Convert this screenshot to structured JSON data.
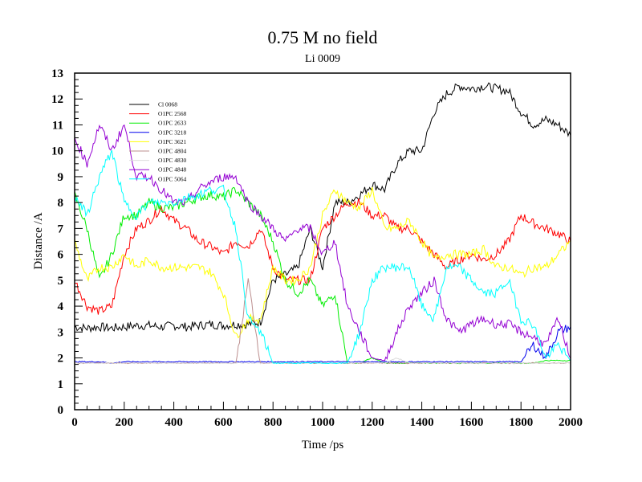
{
  "chart_data": {
    "type": "line",
    "title": "0.75 M no field",
    "subtitle": "Li 0009",
    "xlabel": "Time /ps",
    "ylabel": "Distance /A",
    "xlim": [
      0,
      2000
    ],
    "ylim": [
      0,
      13
    ],
    "xticks": [
      0,
      200,
      400,
      600,
      800,
      1000,
      1200,
      1400,
      1600,
      1800,
      2000
    ],
    "yticks": [
      0,
      1,
      2,
      3,
      4,
      5,
      6,
      7,
      8,
      9,
      10,
      11,
      12,
      13
    ],
    "grid": false,
    "legend_position": "top-left",
    "x": [
      0,
      50,
      100,
      150,
      200,
      250,
      300,
      350,
      400,
      450,
      500,
      550,
      600,
      650,
      700,
      750,
      800,
      850,
      900,
      950,
      1000,
      1050,
      1100,
      1150,
      1200,
      1250,
      1300,
      1350,
      1400,
      1450,
      1500,
      1550,
      1600,
      1650,
      1700,
      1750,
      1800,
      1850,
      1900,
      1950,
      2000
    ],
    "series": [
      {
        "name": "Cl 0068",
        "color": "#000000",
        "values": [
          3.2,
          3.15,
          3.2,
          3.15,
          3.2,
          3.25,
          3.25,
          3.2,
          3.25,
          3.2,
          3.25,
          3.3,
          3.25,
          3.3,
          3.3,
          3.4,
          5.0,
          5.2,
          5.5,
          7.0,
          5.5,
          8.0,
          8.0,
          8.3,
          8.7,
          8.5,
          9.5,
          10.0,
          10.0,
          11.5,
          12.2,
          12.5,
          12.4,
          12.5,
          12.4,
          12.3,
          11.5,
          11.0,
          11.2,
          11.0,
          10.6
        ]
      },
      {
        "name": "O1PC 2568",
        "color": "#ff0000",
        "values": [
          5.0,
          4.0,
          3.8,
          4.0,
          6.0,
          7.0,
          7.3,
          7.8,
          7.3,
          7.0,
          6.5,
          6.3,
          6.0,
          6.5,
          6.3,
          7.0,
          5.5,
          5.0,
          5.0,
          5.0,
          7.0,
          7.5,
          8.0,
          8.0,
          7.5,
          7.5,
          7.0,
          7.0,
          6.5,
          6.0,
          5.5,
          5.8,
          6.0,
          5.8,
          6.0,
          6.5,
          7.5,
          7.2,
          7.0,
          6.8,
          6.5
        ]
      },
      {
        "name": "O1PC 2633",
        "color": "#00ee00",
        "values": [
          8.3,
          7.0,
          5.0,
          6.0,
          7.5,
          7.5,
          8.0,
          7.8,
          7.8,
          8.0,
          8.2,
          8.3,
          8.2,
          8.5,
          8.0,
          7.5,
          6.5,
          5.0,
          4.5,
          5.0,
          4.0,
          4.5,
          1.8,
          1.8,
          2.0,
          1.8,
          1.8,
          1.8,
          1.8,
          1.8,
          1.8,
          1.8,
          1.8,
          1.8,
          1.8,
          1.8,
          1.8,
          1.8,
          1.9,
          1.9,
          1.9
        ]
      },
      {
        "name": "O1PC 3218",
        "color": "#0000ee",
        "values": [
          1.85,
          1.85,
          1.85,
          1.8,
          1.85,
          1.85,
          1.85,
          1.85,
          1.85,
          1.85,
          1.85,
          1.85,
          1.85,
          1.85,
          1.85,
          1.85,
          1.85,
          1.85,
          1.85,
          1.85,
          1.85,
          1.85,
          1.85,
          1.85,
          1.85,
          1.85,
          1.85,
          1.85,
          1.85,
          1.85,
          1.85,
          1.85,
          1.85,
          1.85,
          1.85,
          1.85,
          1.85,
          2.5,
          2.0,
          3.0,
          3.2
        ]
      },
      {
        "name": "O1PC 3621",
        "color": "#ffff00",
        "values": [
          6.5,
          5.0,
          5.5,
          5.5,
          6.0,
          5.5,
          5.8,
          5.5,
          5.5,
          5.5,
          5.5,
          5.3,
          4.5,
          2.8,
          3.5,
          3.5,
          5.5,
          5.0,
          5.0,
          5.5,
          7.5,
          8.5,
          8.0,
          7.8,
          8.5,
          7.0,
          7.0,
          7.3,
          6.5,
          5.8,
          6.0,
          6.0,
          6.0,
          6.2,
          5.5,
          5.5,
          5.2,
          5.5,
          5.5,
          6.0,
          6.5
        ]
      },
      {
        "name": "O1PC 4804",
        "color": "#bc8f8f",
        "values": [
          1.8,
          1.8,
          1.8,
          1.8,
          1.8,
          1.8,
          1.8,
          1.8,
          1.8,
          1.8,
          1.8,
          1.8,
          1.8,
          1.8,
          5.0,
          1.8,
          1.8,
          1.8,
          1.8,
          1.8,
          1.8,
          1.8,
          1.8,
          1.8,
          1.8,
          1.8,
          1.8,
          1.8,
          1.8,
          1.8,
          1.8,
          1.8,
          1.8,
          1.8,
          1.8,
          1.8,
          1.8,
          1.8,
          1.8,
          1.8,
          1.8
        ]
      },
      {
        "name": "O1PC 4830",
        "color": "#dcdcdc",
        "values": [
          1.8,
          1.8,
          1.8,
          1.8,
          1.8,
          1.8,
          1.8,
          1.8,
          1.8,
          1.8,
          1.8,
          1.8,
          1.8,
          1.8,
          1.8,
          1.8,
          1.8,
          1.8,
          1.8,
          1.8,
          1.8,
          1.8,
          1.8,
          1.8,
          1.8,
          1.8,
          2.0,
          1.8,
          1.8,
          1.8,
          1.8,
          1.8,
          1.8,
          1.8,
          1.8,
          1.8,
          1.8,
          1.8,
          1.8,
          1.8,
          1.8
        ]
      },
      {
        "name": "O1PC 4848",
        "color": "#9400d3",
        "values": [
          10.5,
          9.5,
          11.0,
          10.0,
          11.0,
          9.0,
          9.0,
          8.5,
          8.0,
          8.0,
          8.5,
          8.8,
          9.0,
          9.0,
          8.0,
          7.5,
          7.0,
          6.5,
          7.0,
          7.0,
          6.0,
          6.5,
          4.0,
          3.0,
          2.0,
          1.9,
          3.0,
          4.0,
          4.5,
          5.0,
          3.5,
          3.0,
          3.3,
          3.5,
          3.3,
          3.3,
          3.0,
          2.8,
          2.5,
          3.5,
          2.0
        ]
      },
      {
        "name": "O1PC 5064",
        "color": "#00ffff",
        "values": [
          8.3,
          7.5,
          9.0,
          10.0,
          8.0,
          7.5,
          8.0,
          8.0,
          8.0,
          8.2,
          8.3,
          8.5,
          8.5,
          7.0,
          3.5,
          3.0,
          1.8,
          1.8,
          1.8,
          1.8,
          1.8,
          1.8,
          1.8,
          3.0,
          5.0,
          5.5,
          5.5,
          5.5,
          4.0,
          3.5,
          5.5,
          5.5,
          5.0,
          4.5,
          4.5,
          5.0,
          3.5,
          3.3,
          2.0,
          2.5,
          1.9
        ]
      }
    ]
  }
}
